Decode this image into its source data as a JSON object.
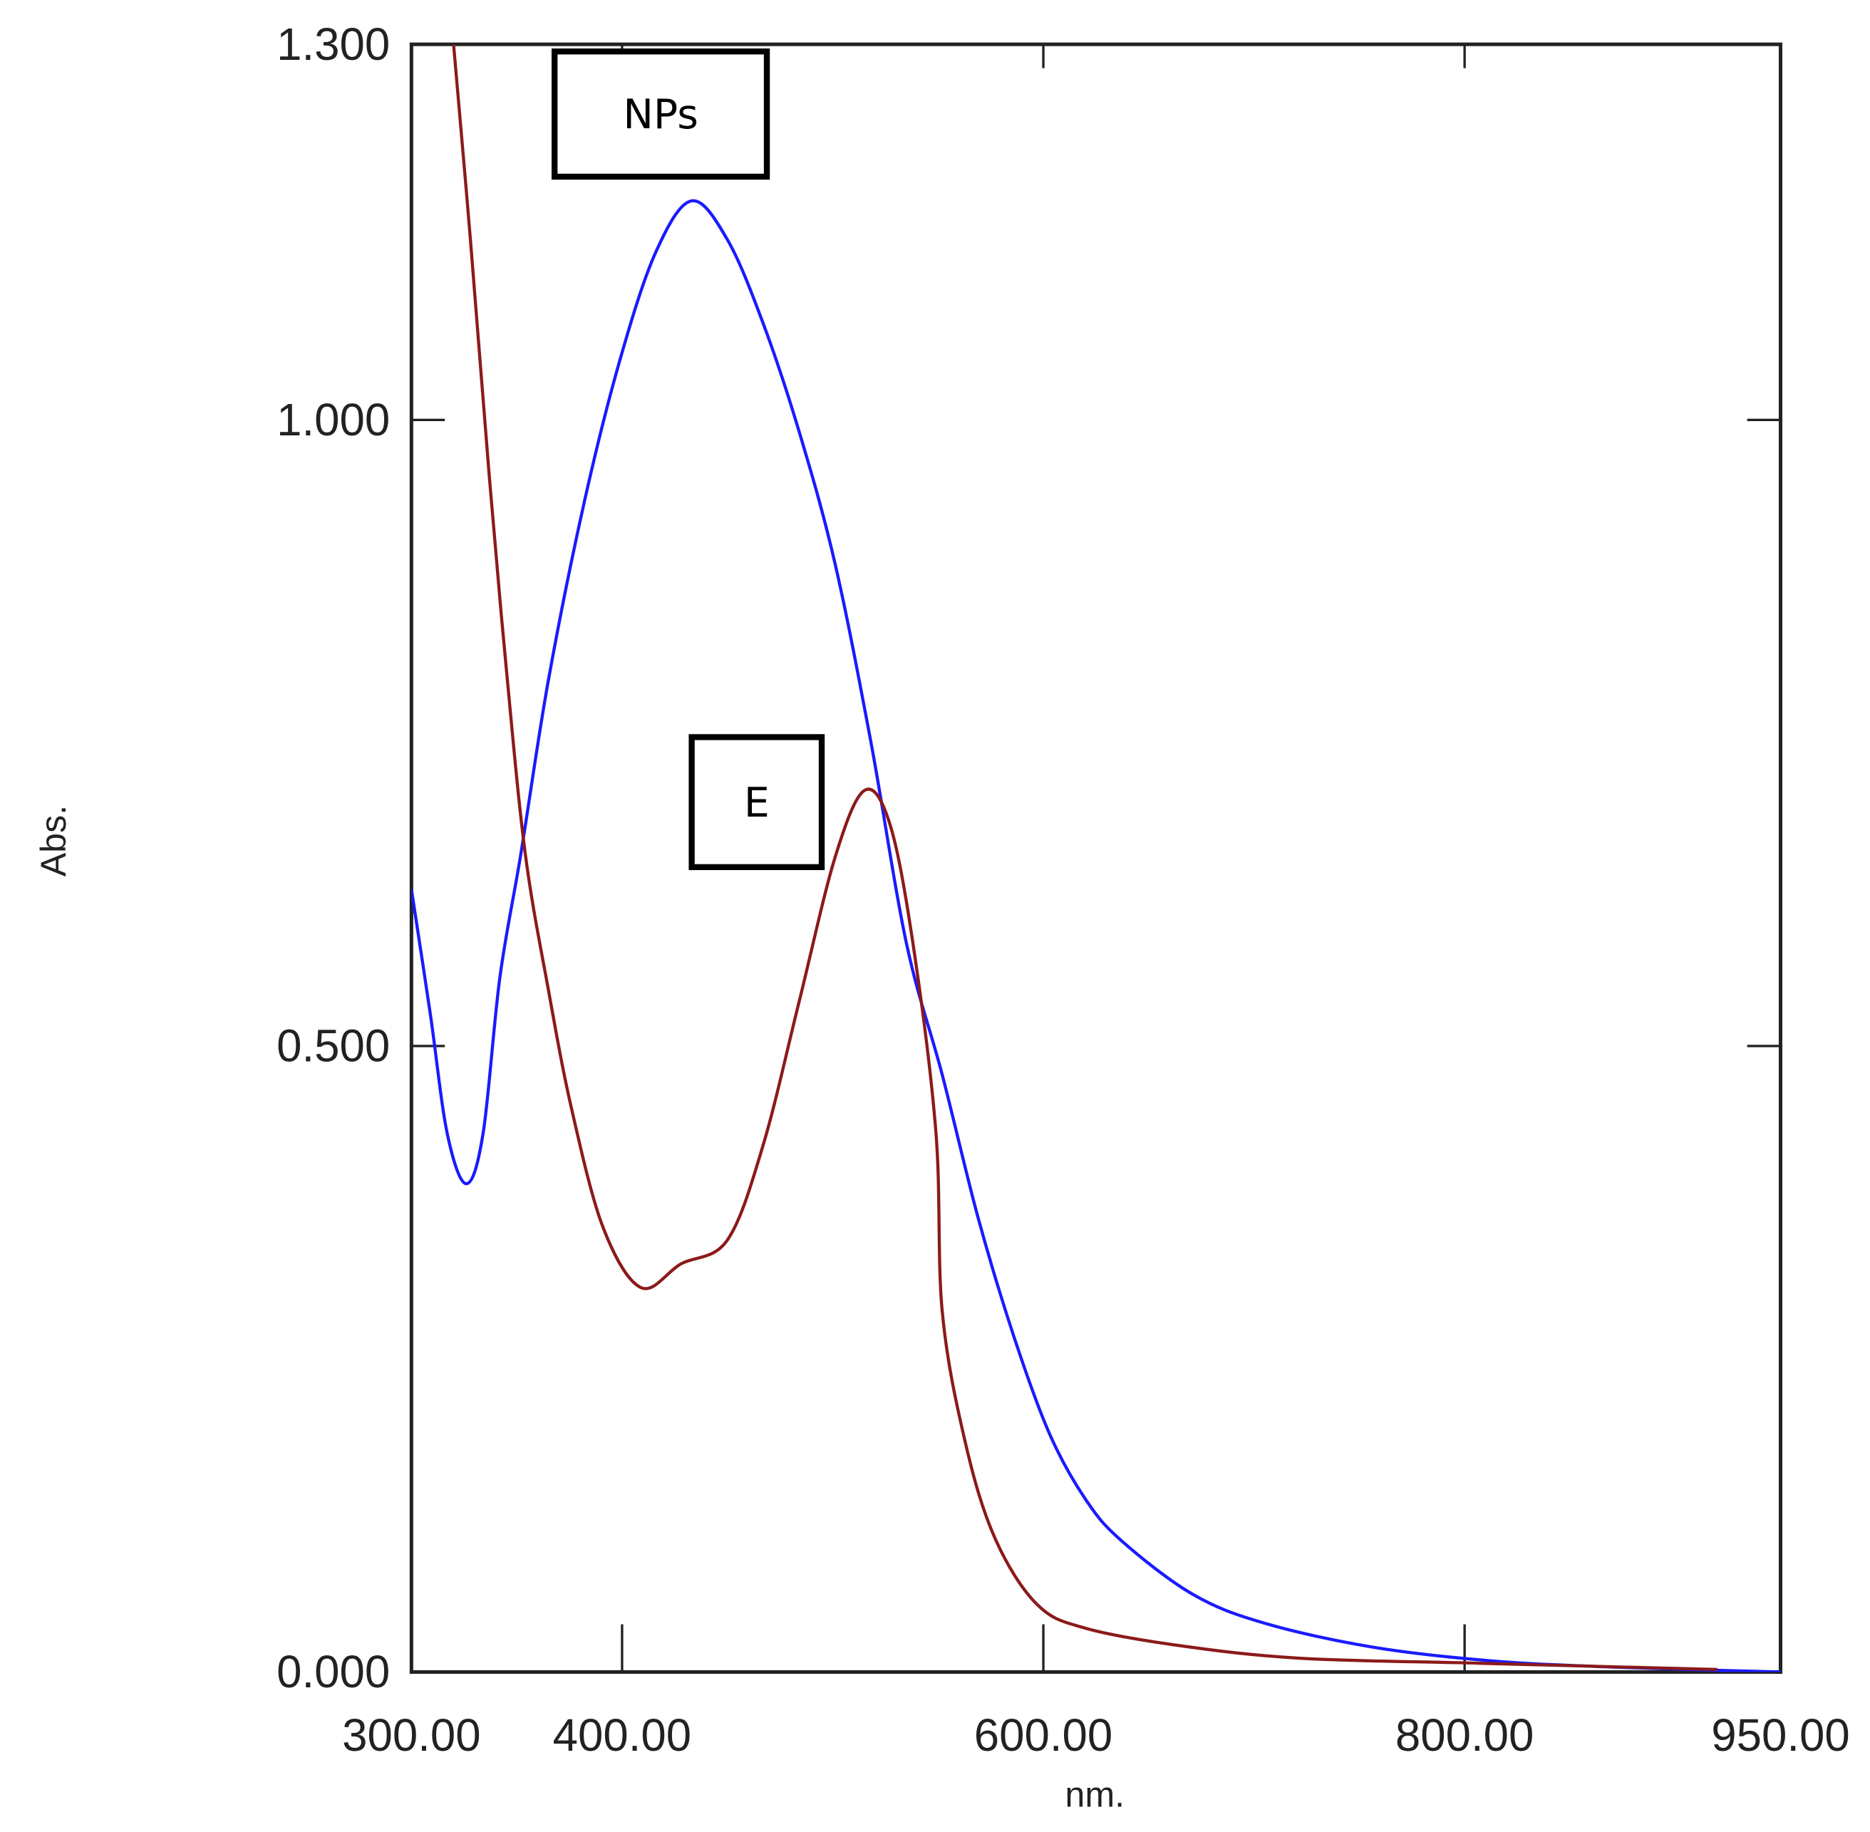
{
  "chart_data": {
    "type": "line",
    "title": "",
    "xlabel": "nm.",
    "ylabel": "Abs.",
    "xlim": [
      300,
      950
    ],
    "ylim": [
      0,
      1.3
    ],
    "grid": false,
    "x_ticks": [
      "300.00",
      "400.00",
      "600.00",
      "800.00",
      "950.00"
    ],
    "y_ticks": [
      "0.000",
      "0.500",
      "1.000",
      "1.300"
    ],
    "annotations": [
      {
        "text": "NPs",
        "x": 433,
        "y": 1.24,
        "boxed": true
      },
      {
        "text": "E",
        "x": 505,
        "y": 0.69,
        "boxed": true
      }
    ],
    "series": [
      {
        "name": "NPs",
        "color": "#1a1aff",
        "x": [
          300,
          309,
          317,
          326,
          334,
          342,
          352,
          365,
          382,
          399,
          416,
          433,
          450,
          467,
          484,
          501,
          518,
          535,
          552,
          569,
          586,
          603,
          620,
          637,
          671,
          705,
          756,
          812,
          869,
          950
        ],
        "y": [
          0.625,
          0.525,
          0.43,
          0.39,
          0.43,
          0.555,
          0.654,
          0.792,
          0.934,
          1.048,
          1.134,
          1.175,
          1.144,
          1.077,
          0.991,
          0.886,
          0.744,
          0.582,
          0.477,
          0.363,
          0.268,
          0.19,
          0.138,
          0.105,
          0.062,
          0.039,
          0.02,
          0.009,
          0.004,
          0.0
        ]
      },
      {
        "name": "E",
        "color": "#8b1a1a",
        "x": [
          320,
          328,
          337,
          345,
          354,
          365,
          376,
          391,
          409,
          428,
          450,
          467,
          484,
          501,
          515,
          527,
          538,
          549,
          552,
          563,
          577,
          597,
          620,
          665,
          722,
          807,
          920
        ],
        "y": [
          1.3,
          1.144,
          0.954,
          0.802,
          0.654,
          0.545,
          0.45,
          0.355,
          0.307,
          0.326,
          0.345,
          0.421,
          0.535,
          0.65,
          0.704,
          0.678,
          0.583,
          0.431,
          0.288,
          0.183,
          0.107,
          0.054,
          0.035,
          0.021,
          0.011,
          0.007,
          0.002
        ]
      }
    ]
  }
}
